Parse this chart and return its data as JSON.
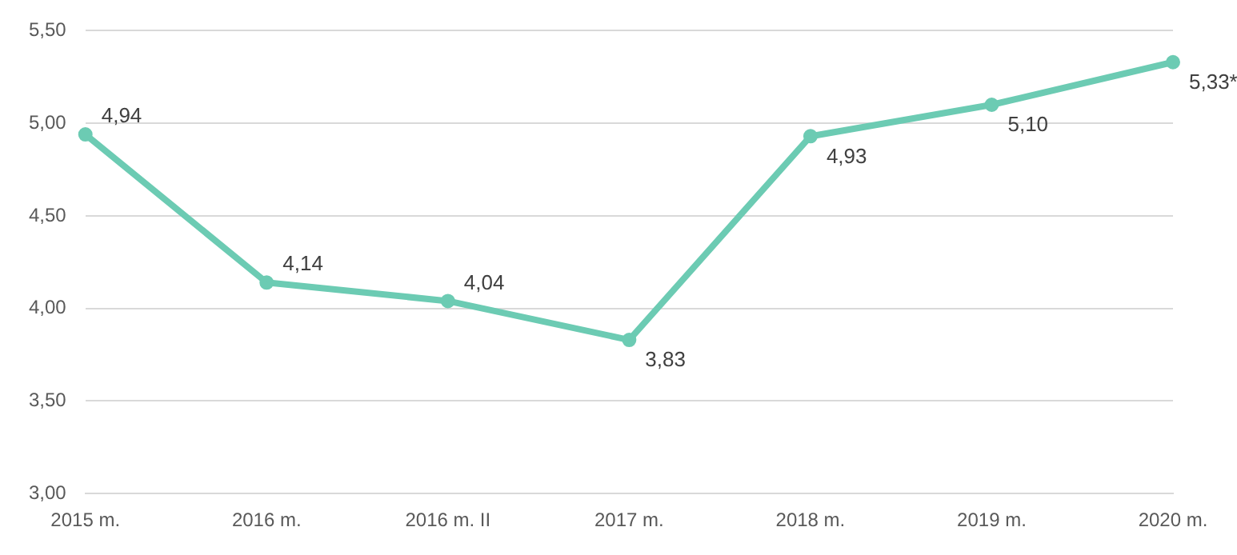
{
  "chart_data": {
    "type": "line",
    "categories": [
      "2015 m.",
      "2016 m.",
      "2016 m. II",
      "2017 m.",
      "2018 m.",
      "2019 m.",
      "2020 m."
    ],
    "series": [
      {
        "color": "#6ccbb3",
        "values": [
          4.94,
          4.14,
          4.04,
          3.83,
          4.93,
          5.1,
          5.33
        ],
        "value_labels": [
          "4,94",
          "4,14",
          "4,04",
          "3,83",
          "4,93",
          "5,10",
          "5,33*"
        ]
      }
    ],
    "ylim": [
      3,
      5.5
    ],
    "yticks": [
      {
        "value": 3,
        "label": "3,00"
      },
      {
        "value": 3.5,
        "label": "3,50"
      },
      {
        "value": 4,
        "label": "4,00"
      },
      {
        "value": 4.5,
        "label": "4,50"
      },
      {
        "value": 5,
        "label": "5,00"
      },
      {
        "value": 5.5,
        "label": "5,50"
      }
    ],
    "grid": "y",
    "legend": false,
    "marker": "circle",
    "line_style": "solid"
  }
}
